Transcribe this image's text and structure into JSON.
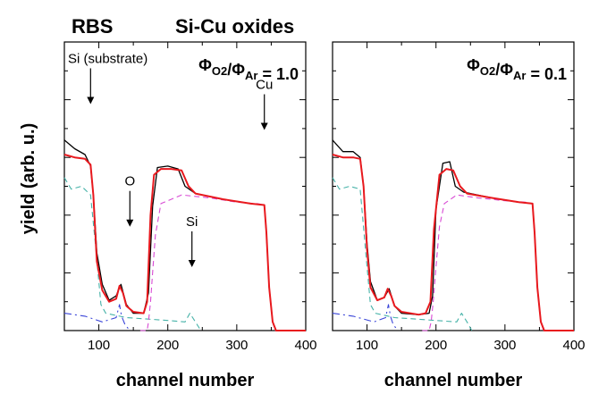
{
  "figure": {
    "heading_left": "RBS",
    "heading_right": "Si-Cu oxides",
    "ylabel": "yield (arb. u.)"
  },
  "chart_data": [
    {
      "type": "line",
      "xlabel": "channel number",
      "ylabel": "yield (arb. u.)",
      "xlim": [
        50,
        400
      ],
      "xticks": [
        100,
        200,
        300,
        400
      ],
      "ylim": [
        0,
        1
      ],
      "y_tick_labels_shown": false,
      "grid": false,
      "annotation": {
        "phi": "Φ",
        "o2": "O2",
        "slash": "/",
        "ar": "Ar",
        "value": " = 1.0"
      },
      "labels": [
        {
          "text": "Si (substrate)",
          "x": 88,
          "y": 0.785
        },
        {
          "text": "O",
          "x": 145,
          "y": 0.36
        },
        {
          "text": "Si",
          "x": 235,
          "y": 0.22
        },
        {
          "text": "Cu",
          "x": 340,
          "y": 0.695
        }
      ],
      "series": [
        {
          "kind": "experimental",
          "color": "#000000",
          "x": [
            50,
            65,
            80,
            88,
            92,
            97,
            105,
            115,
            125,
            132,
            140,
            150,
            165,
            172,
            178,
            185,
            200,
            215,
            225,
            240,
            280,
            320,
            340,
            343,
            347,
            352,
            357,
            400
          ],
          "y": [
            0.66,
            0.63,
            0.61,
            0.57,
            0.47,
            0.27,
            0.16,
            0.105,
            0.12,
            0.16,
            0.09,
            0.06,
            0.06,
            0.13,
            0.43,
            0.565,
            0.57,
            0.56,
            0.5,
            0.475,
            0.455,
            0.44,
            0.435,
            0.34,
            0.15,
            0.03,
            0.0,
            0.0
          ]
        },
        {
          "kind": "fit",
          "color": "#e8191e",
          "x": [
            50,
            65,
            80,
            88,
            92,
            97,
            105,
            115,
            125,
            130,
            135,
            140,
            150,
            165,
            170,
            175,
            180,
            190,
            205,
            220,
            230,
            240,
            280,
            320,
            340,
            343,
            347,
            352,
            357,
            400
          ],
          "y": [
            0.61,
            0.6,
            0.595,
            0.575,
            0.47,
            0.24,
            0.14,
            0.1,
            0.11,
            0.155,
            0.13,
            0.085,
            0.065,
            0.06,
            0.1,
            0.4,
            0.54,
            0.56,
            0.56,
            0.555,
            0.5,
            0.475,
            0.455,
            0.44,
            0.435,
            0.34,
            0.15,
            0.03,
            0.0,
            0.0
          ]
        },
        {
          "kind": "component",
          "color": "#46b2a8",
          "dash": "6,4",
          "x": [
            50,
            60,
            75,
            88,
            95,
            103,
            110,
            140,
            170,
            200,
            225,
            232,
            240,
            248
          ],
          "y": [
            0.53,
            0.49,
            0.5,
            0.47,
            0.3,
            0.09,
            0.06,
            0.045,
            0.04,
            0.035,
            0.03,
            0.06,
            0.03,
            0.0
          ]
        },
        {
          "kind": "component",
          "color": "#3a45d8",
          "dash": "8,4,2,4",
          "x": [
            50,
            80,
            105,
            125,
            130,
            133,
            138,
            145
          ],
          "y": [
            0.06,
            0.05,
            0.03,
            0.045,
            0.09,
            0.05,
            0.02,
            0.0
          ]
        },
        {
          "kind": "component",
          "color": "#d84ad4",
          "dash": "6,4",
          "x": [
            160,
            170,
            172,
            175,
            178,
            182,
            190,
            220,
            260,
            300,
            330,
            340,
            343,
            347,
            352,
            356
          ],
          "y": [
            0.0,
            0.0,
            0.03,
            0.1,
            0.2,
            0.33,
            0.44,
            0.47,
            0.46,
            0.445,
            0.44,
            0.435,
            0.34,
            0.15,
            0.03,
            0.0
          ]
        }
      ]
    },
    {
      "type": "line",
      "xlabel": "channel number",
      "ylabel": "",
      "xlim": [
        50,
        400
      ],
      "xticks": [
        100,
        200,
        300,
        400
      ],
      "ylim": [
        0,
        1
      ],
      "y_tick_labels_shown": false,
      "grid": false,
      "annotation": {
        "phi": "Φ",
        "o2": "O2",
        "slash": "/",
        "ar": "Ar",
        "value": " = 0.1"
      },
      "labels": [],
      "series": [
        {
          "kind": "experimental",
          "color": "#000000",
          "x": [
            50,
            65,
            80,
            90,
            95,
            100,
            105,
            115,
            125,
            132,
            140,
            150,
            175,
            190,
            195,
            200,
            210,
            220,
            228,
            240,
            280,
            320,
            340,
            343,
            347,
            352,
            357,
            400
          ],
          "y": [
            0.66,
            0.62,
            0.62,
            0.6,
            0.5,
            0.3,
            0.17,
            0.105,
            0.115,
            0.145,
            0.085,
            0.06,
            0.055,
            0.06,
            0.12,
            0.42,
            0.58,
            0.585,
            0.5,
            0.48,
            0.46,
            0.445,
            0.44,
            0.34,
            0.15,
            0.03,
            0.0,
            0.0
          ]
        },
        {
          "kind": "fit",
          "color": "#e8191e",
          "x": [
            50,
            65,
            80,
            90,
            95,
            100,
            105,
            115,
            125,
            130,
            135,
            140,
            150,
            175,
            185,
            192,
            197,
            205,
            215,
            225,
            235,
            245,
            280,
            320,
            340,
            343,
            347,
            352,
            357,
            400
          ],
          "y": [
            0.61,
            0.6,
            0.6,
            0.595,
            0.5,
            0.28,
            0.15,
            0.105,
            0.115,
            0.145,
            0.12,
            0.085,
            0.065,
            0.055,
            0.06,
            0.1,
            0.35,
            0.54,
            0.56,
            0.555,
            0.5,
            0.475,
            0.46,
            0.445,
            0.44,
            0.34,
            0.15,
            0.03,
            0.0,
            0.0
          ]
        },
        {
          "kind": "component",
          "color": "#46b2a8",
          "dash": "6,4",
          "x": [
            50,
            60,
            75,
            90,
            97,
            105,
            112,
            140,
            170,
            200,
            230,
            237,
            245,
            252
          ],
          "y": [
            0.53,
            0.49,
            0.5,
            0.49,
            0.3,
            0.09,
            0.06,
            0.045,
            0.04,
            0.035,
            0.03,
            0.06,
            0.03,
            0.0
          ]
        },
        {
          "kind": "component",
          "color": "#3a45d8",
          "dash": "8,4,2,4",
          "x": [
            50,
            80,
            110,
            127,
            131,
            134,
            138,
            145
          ],
          "y": [
            0.06,
            0.05,
            0.03,
            0.045,
            0.09,
            0.05,
            0.02,
            0.0
          ]
        },
        {
          "kind": "component",
          "color": "#d84ad4",
          "dash": "6,4",
          "x": [
            180,
            190,
            193,
            196,
            200,
            205,
            212,
            230,
            260,
            300,
            330,
            340,
            343,
            347,
            352,
            356
          ],
          "y": [
            0.0,
            0.0,
            0.03,
            0.1,
            0.22,
            0.36,
            0.44,
            0.47,
            0.46,
            0.45,
            0.445,
            0.44,
            0.34,
            0.15,
            0.03,
            0.0
          ]
        }
      ]
    }
  ]
}
